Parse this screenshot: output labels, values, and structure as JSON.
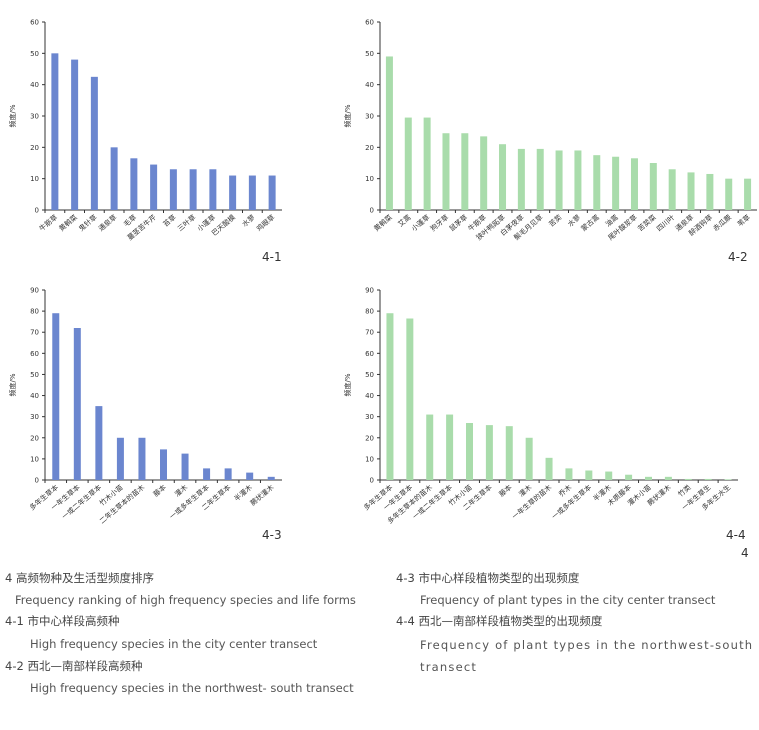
{
  "colors": {
    "blue": "#6b86cf",
    "green": "#a9dcab",
    "axis": "#333333"
  },
  "chart_data": [
    {
      "id": "4-1",
      "type": "bar",
      "label": "4-1",
      "ylabel": "频度/%",
      "ylim": [
        0,
        60
      ],
      "yticks": [
        0,
        10,
        20,
        30,
        40,
        50,
        60
      ],
      "color": "blue",
      "categories": [
        "牛筋草",
        "黄鹌菜",
        "鬼针草",
        "通泉草",
        "毛草",
        "蔓茎苦牛芹",
        "苔草",
        "三叶草",
        "小蓬草",
        "巴天酸模",
        "水蓼",
        "鸡眼草"
      ],
      "values": [
        50,
        48,
        42.5,
        20,
        16.5,
        14.5,
        13,
        13,
        13,
        11,
        11,
        11
      ]
    },
    {
      "id": "4-2",
      "type": "bar",
      "label": "4-2",
      "ylabel": "频度/%",
      "ylim": [
        0,
        60
      ],
      "yticks": [
        0,
        10,
        20,
        30,
        40,
        50,
        60
      ],
      "color": "green",
      "categories": [
        "黄鹌菜",
        "艾蒿",
        "小蓬草",
        "狗牙草",
        "鼠茅草",
        "牛筋草",
        "狭叶鸭跖草",
        "白茅夜草",
        "鬃毛月见草",
        "苦荬",
        "水蓼",
        "蒙古蒿",
        "油蒿",
        "尾叶酸浆草",
        "苦荬菜",
        "四川叶",
        "通泉草",
        "醉酒钩草",
        "赤瓜蕨",
        "苇草"
      ],
      "values": [
        49,
        29.5,
        29.5,
        24.5,
        24.5,
        23.5,
        21,
        19.5,
        19.5,
        19,
        19,
        17.5,
        17,
        16.5,
        15,
        13,
        12,
        11.5,
        10,
        10
      ]
    },
    {
      "id": "4-3",
      "type": "bar",
      "label": "4-3",
      "ylabel": "频度/%",
      "ylim": [
        0,
        90
      ],
      "yticks": [
        0,
        10,
        20,
        30,
        40,
        50,
        60,
        70,
        80,
        90
      ],
      "color": "blue",
      "categories": [
        "多年生草本",
        "一年生草本",
        "一或二年生草本",
        "竹木小苗",
        "二年生草本的苗木",
        "藤本",
        "灌木",
        "一或多年生草本",
        "二年生草本",
        "半灌木",
        "蕨状灌木"
      ],
      "values": [
        79,
        72,
        35,
        20,
        20,
        14.5,
        12.5,
        5.5,
        5.5,
        3.5,
        1.5
      ]
    },
    {
      "id": "4-4",
      "type": "bar",
      "label": "4-4",
      "ylabel": "频度/%",
      "ylim": [
        0,
        90
      ],
      "yticks": [
        0,
        10,
        20,
        30,
        40,
        50,
        60,
        70,
        80,
        90
      ],
      "color": "green",
      "categories": [
        "多年生草本",
        "一年生草本",
        "多年生草本的苗木",
        "一或二年生草本",
        "竹木小苗",
        "二年生草本",
        "藤本",
        "灌木",
        "一年生草的苗木",
        "乔木",
        "一或多年生草本",
        "半灌木",
        "木质藤本",
        "灌木小苗",
        "蕨状灌木",
        "竹类",
        "一年生草生",
        "多年生水生"
      ],
      "values": [
        79,
        76.5,
        31,
        31,
        27,
        26,
        25.5,
        20,
        10.5,
        5.5,
        4.5,
        4,
        2.5,
        1.5,
        1.5,
        0.5,
        0.5,
        0.3
      ]
    }
  ],
  "extra_label": "4",
  "captions": {
    "c0_cn": "4 高频物种及生活型频度排序",
    "c0_en": "Frequency ranking of high frequency species and life forms",
    "c1_cn": "4-1 市中心样段高频种",
    "c1_en": "High frequency species in the city center transect",
    "c2_cn": "4-2 西北—南部样段高频种",
    "c2_en": "High frequency species in the northwest- south transect",
    "c3_cn": "4-3 市中心样段植物类型的出现频度",
    "c3_en": "Frequency of plant types in the city center transect",
    "c4_cn": "4-4 西北—南部样段植物类型的出现频度",
    "c4_en": "Frequency of plant types in the northwest-south transect"
  }
}
